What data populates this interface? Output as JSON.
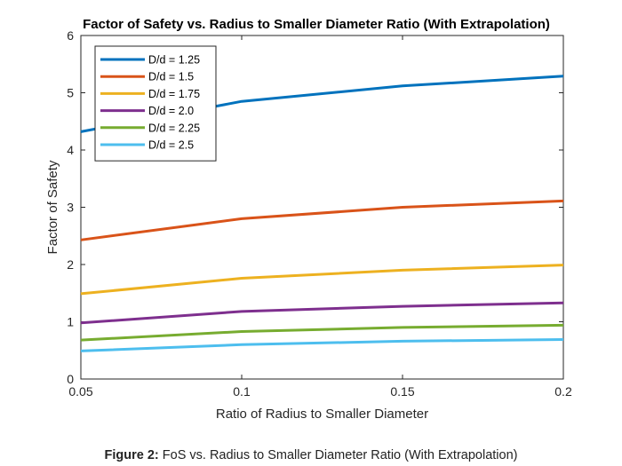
{
  "chart_data": {
    "type": "line",
    "title": "Factor of Safety vs. Radius to Smaller Diameter Ratio (With Extrapolation)",
    "xlabel": "Ratio of Radius to Smaller Diameter",
    "ylabel": "Factor of Safety",
    "x": [
      0.05,
      0.1,
      0.15,
      0.2
    ],
    "xlim": [
      0.05,
      0.2
    ],
    "ylim": [
      0,
      6
    ],
    "xticks": [
      0.05,
      0.1,
      0.15,
      0.2
    ],
    "xtick_labels": [
      "0.05",
      "0.1",
      "0.15",
      "0.2"
    ],
    "yticks": [
      0,
      1,
      2,
      3,
      4,
      5,
      6
    ],
    "ytick_labels": [
      "0",
      "1",
      "2",
      "3",
      "4",
      "5",
      "6"
    ],
    "grid": false,
    "legend_position": "top-left",
    "series": [
      {
        "name": "D/d = 1.25",
        "color": "#0072BD",
        "values": [
          4.32,
          4.85,
          5.12,
          5.29
        ]
      },
      {
        "name": "D/d = 1.5",
        "color": "#D95319",
        "values": [
          2.43,
          2.8,
          3.0,
          3.11
        ]
      },
      {
        "name": "D/d = 1.75",
        "color": "#EDB120",
        "values": [
          1.49,
          1.76,
          1.9,
          1.99
        ]
      },
      {
        "name": "D/d = 2.0",
        "color": "#7E2F8E",
        "values": [
          0.98,
          1.18,
          1.27,
          1.33
        ]
      },
      {
        "name": "D/d = 2.25",
        "color": "#77AC30",
        "values": [
          0.68,
          0.83,
          0.9,
          0.94
        ]
      },
      {
        "name": "D/d = 2.5",
        "color": "#4DBEEE",
        "values": [
          0.49,
          0.6,
          0.66,
          0.69
        ]
      }
    ]
  },
  "caption": {
    "label": "Figure 2:",
    "text": "FoS vs. Radius to Smaller Diameter Ratio (With Extrapolation)"
  }
}
